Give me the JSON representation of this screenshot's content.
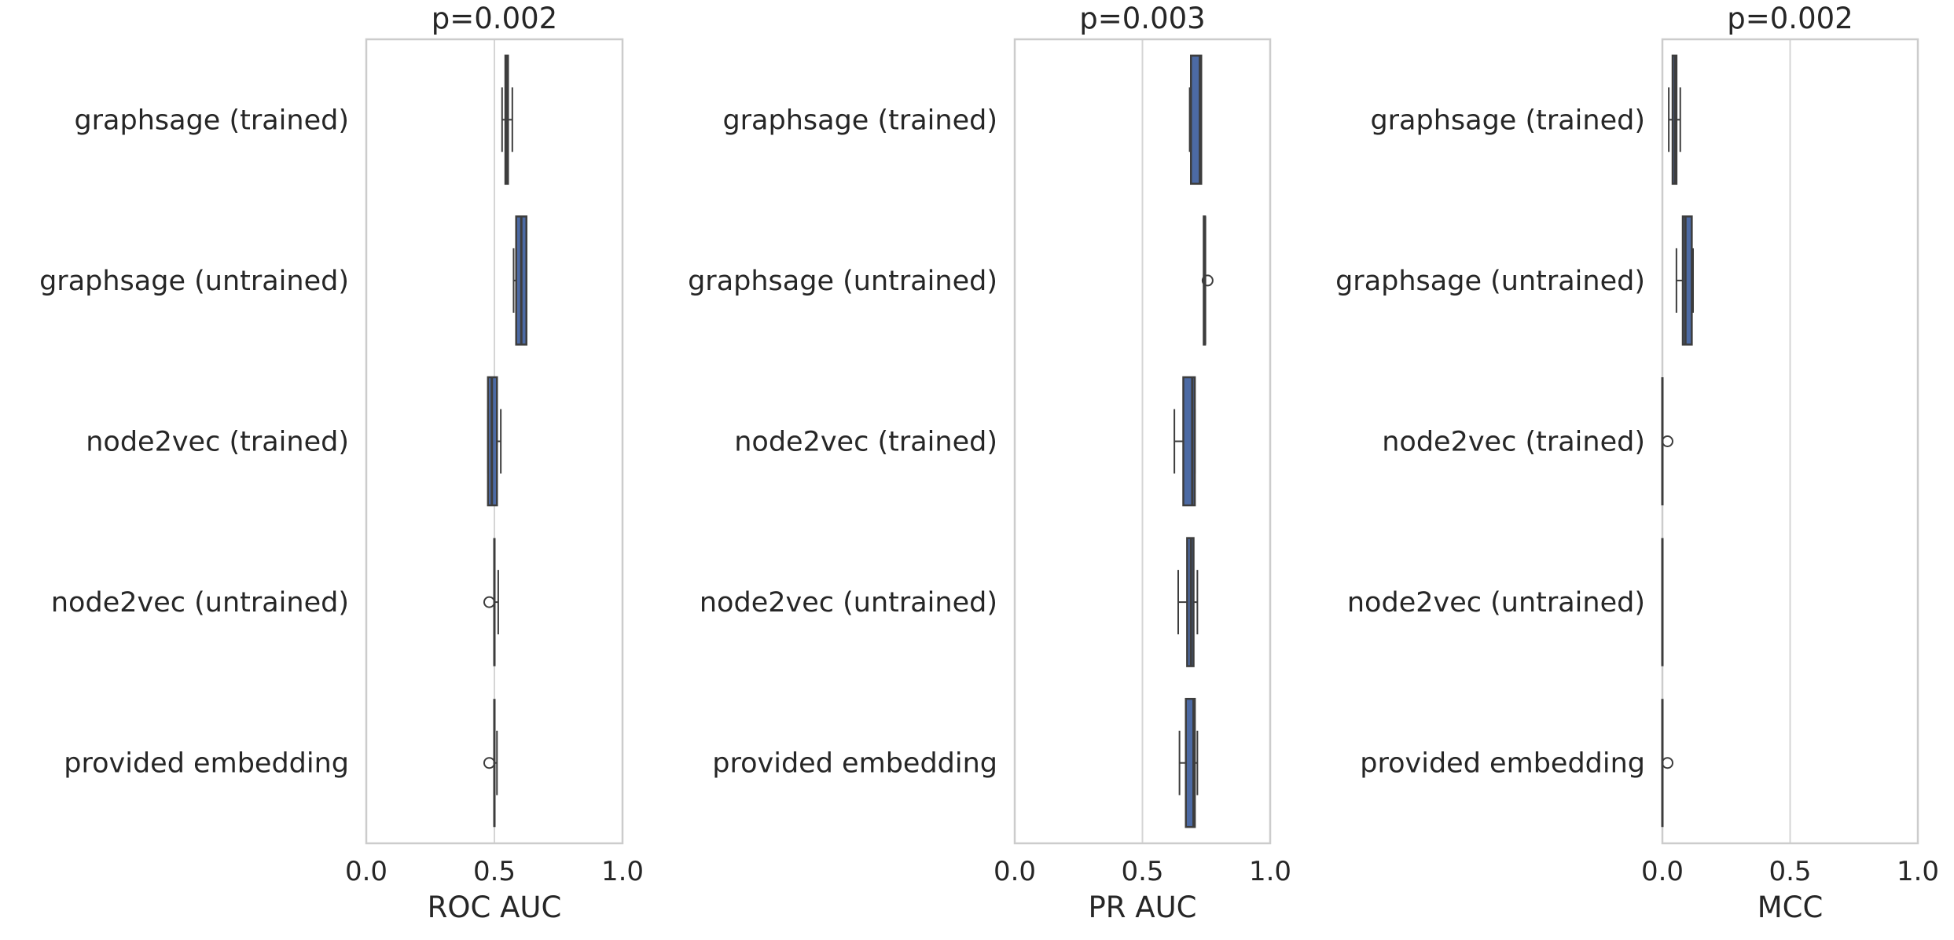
{
  "colors": {
    "box_fill": "#4c6aa4",
    "box_edge": "#3d3d3d",
    "frame": "#cccccc",
    "grid": "#d5d5d5",
    "text": "#262626"
  },
  "chart_data": [
    {
      "type": "boxplot",
      "orientation": "horizontal",
      "title": "p=0.002",
      "xlabel": "ROC AUC",
      "ylabel": "",
      "xlim": [
        0.0,
        1.0
      ],
      "xticks": [
        "0.0",
        "0.5",
        "1.0"
      ],
      "grid": true,
      "categories": [
        "graphsage (trained)",
        "graphsage (untrained)",
        "node2vec (trained)",
        "node2vec (untrained)",
        "provided embedding"
      ],
      "boxes": [
        {
          "whislo": 0.53,
          "q1": 0.543,
          "med": 0.55,
          "q3": 0.553,
          "whishi": 0.57,
          "fliers": []
        },
        {
          "whislo": 0.575,
          "q1": 0.585,
          "med": 0.605,
          "q3": 0.625,
          "whishi": 0.625,
          "fliers": []
        },
        {
          "whislo": 0.475,
          "q1": 0.475,
          "med": 0.49,
          "q3": 0.51,
          "whishi": 0.525,
          "fliers": []
        },
        {
          "whislo": 0.5,
          "q1": 0.5,
          "med": 0.5,
          "q3": 0.5,
          "whishi": 0.515,
          "fliers": [
            0.48
          ]
        },
        {
          "whislo": 0.5,
          "q1": 0.5,
          "med": 0.5,
          "q3": 0.5,
          "whishi": 0.51,
          "fliers": [
            0.48
          ]
        }
      ]
    },
    {
      "type": "boxplot",
      "orientation": "horizontal",
      "title": "p=0.003",
      "xlabel": "PR AUC",
      "ylabel": "",
      "xlim": [
        0.0,
        1.0
      ],
      "xticks": [
        "0.0",
        "0.5",
        "1.0"
      ],
      "grid": true,
      "categories": [
        "graphsage (trained)",
        "graphsage (untrained)",
        "node2vec (trained)",
        "node2vec (untrained)",
        "provided embedding"
      ],
      "boxes": [
        {
          "whislo": 0.685,
          "q1": 0.69,
          "med": 0.725,
          "q3": 0.73,
          "whishi": 0.73,
          "fliers": []
        },
        {
          "whislo": 0.74,
          "q1": 0.74,
          "med": 0.745,
          "q3": 0.745,
          "whishi": 0.745,
          "fliers": [
            0.755
          ]
        },
        {
          "whislo": 0.625,
          "q1": 0.66,
          "med": 0.695,
          "q3": 0.705,
          "whishi": 0.705,
          "fliers": []
        },
        {
          "whislo": 0.64,
          "q1": 0.675,
          "med": 0.69,
          "q3": 0.7,
          "whishi": 0.715,
          "fliers": []
        },
        {
          "whislo": 0.645,
          "q1": 0.67,
          "med": 0.7,
          "q3": 0.705,
          "whishi": 0.715,
          "fliers": []
        }
      ]
    },
    {
      "type": "boxplot",
      "orientation": "horizontal",
      "title": "p=0.002",
      "xlabel": "MCC",
      "ylabel": "",
      "xlim": [
        0.0,
        1.0
      ],
      "xticks": [
        "0.0",
        "0.5",
        "1.0"
      ],
      "grid": true,
      "categories": [
        "graphsage (trained)",
        "graphsage (untrained)",
        "node2vec (trained)",
        "node2vec (untrained)",
        "provided embedding"
      ],
      "boxes": [
        {
          "whislo": 0.025,
          "q1": 0.04,
          "med": 0.05,
          "q3": 0.055,
          "whishi": 0.07,
          "fliers": []
        },
        {
          "whislo": 0.055,
          "q1": 0.08,
          "med": 0.09,
          "q3": 0.115,
          "whishi": 0.12,
          "fliers": []
        },
        {
          "whislo": 0.0,
          "q1": 0.0,
          "med": 0.0,
          "q3": 0.0,
          "whishi": 0.0,
          "fliers": [
            0.02
          ]
        },
        {
          "whislo": 0.0,
          "q1": 0.0,
          "med": 0.0,
          "q3": 0.0,
          "whishi": 0.0,
          "fliers": []
        },
        {
          "whislo": 0.0,
          "q1": 0.0,
          "med": 0.0,
          "q3": 0.0,
          "whishi": 0.0,
          "fliers": [
            0.02
          ]
        }
      ]
    }
  ]
}
